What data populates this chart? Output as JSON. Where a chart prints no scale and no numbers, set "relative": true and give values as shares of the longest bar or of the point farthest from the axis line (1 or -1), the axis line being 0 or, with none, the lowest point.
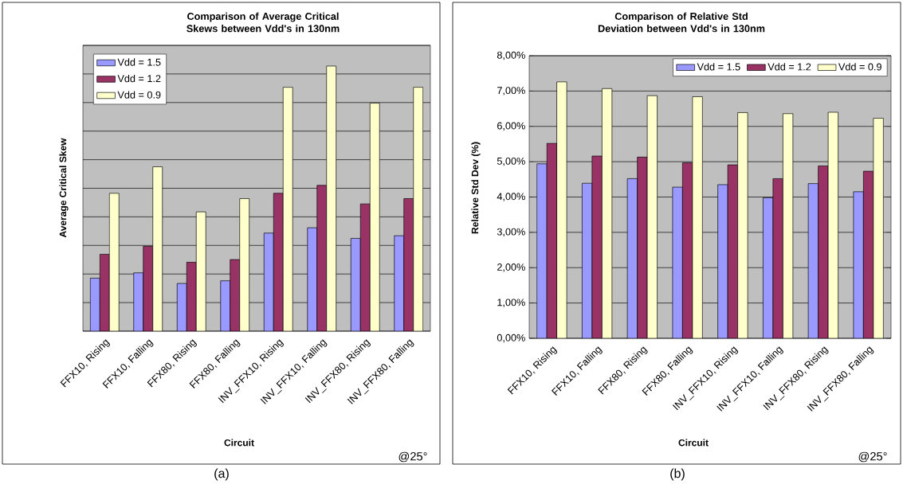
{
  "chart_data": [
    {
      "type": "bar",
      "title": "Comparison of Average Critical Skews between Vdd's in 130nm",
      "xlabel": "Circuit",
      "ylabel": "Average Critical Skew",
      "categories": [
        "FFX10, Rising",
        "FFX10, Falling",
        "FFX80, Rising",
        "FFX80, Falling",
        "INV_FFX10, Rising",
        "INV_FFX10, Falling",
        "INV_FFX80, Rising",
        "INV_FFX80, Falling"
      ],
      "relative": true,
      "series": [
        {
          "name": "Vdd = 1.5",
          "color": "#9999ff",
          "values": [
            0.2,
            0.22,
            0.18,
            0.19,
            0.37,
            0.39,
            0.35,
            0.36
          ]
        },
        {
          "name": "Vdd = 1.2",
          "color": "#993366",
          "values": [
            0.29,
            0.32,
            0.26,
            0.27,
            0.52,
            0.55,
            0.48,
            0.5
          ]
        },
        {
          "name": "Vdd = 0.9",
          "color": "#ffffcc",
          "values": [
            0.52,
            0.62,
            0.45,
            0.5,
            0.92,
            1.0,
            0.86,
            0.92
          ]
        }
      ],
      "grid": "y",
      "legend": "top left",
      "tick_labels": "x",
      "annotations": [
        "@25°",
        "(a)"
      ]
    },
    {
      "type": "bar",
      "title": "Comparison of Relative Std Deviation between Vdd's in 130nm",
      "xlabel": "Circuit",
      "ylabel": "Relative Std Dev (%)",
      "categories": [
        "FFX10, Rising",
        "FFX10, Falling",
        "FFX80, Rising",
        "FFX80, Falling",
        "INV_FFX10, Rising",
        "INV_FFX10, Falling",
        "INV_FFX80, Rising",
        "INV_FFX80, Falling"
      ],
      "series": [
        {
          "name": "Vdd = 1.5",
          "color": "#9999ff",
          "values": [
            4.94,
            4.39,
            4.52,
            4.28,
            4.35,
            3.98,
            4.38,
            4.15
          ]
        },
        {
          "name": "Vdd = 1.2",
          "color": "#993366",
          "values": [
            5.52,
            5.16,
            5.13,
            4.97,
            4.91,
            4.52,
            4.88,
            4.73
          ]
        },
        {
          "name": "Vdd = 0.9",
          "color": "#ffffcc",
          "values": [
            7.26,
            7.07,
            6.87,
            6.84,
            6.39,
            6.36,
            6.4,
            6.23
          ]
        }
      ],
      "ylim": [
        0,
        8
      ],
      "yticks": [
        {
          "value": 0,
          "label": "0,00%"
        },
        {
          "value": 1,
          "label": "1,00%"
        },
        {
          "value": 2,
          "label": "2,00%"
        },
        {
          "value": 3,
          "label": "3,00%"
        },
        {
          "value": 4,
          "label": "4,00%"
        },
        {
          "value": 5,
          "label": "5,00%"
        },
        {
          "value": 6,
          "label": "6,00%"
        },
        {
          "value": 7,
          "label": "7,00%"
        },
        {
          "value": 8,
          "label": "8,00%"
        }
      ],
      "grid": "y",
      "legend": "top right",
      "annotations": [
        "@25°",
        "(b)"
      ]
    }
  ]
}
